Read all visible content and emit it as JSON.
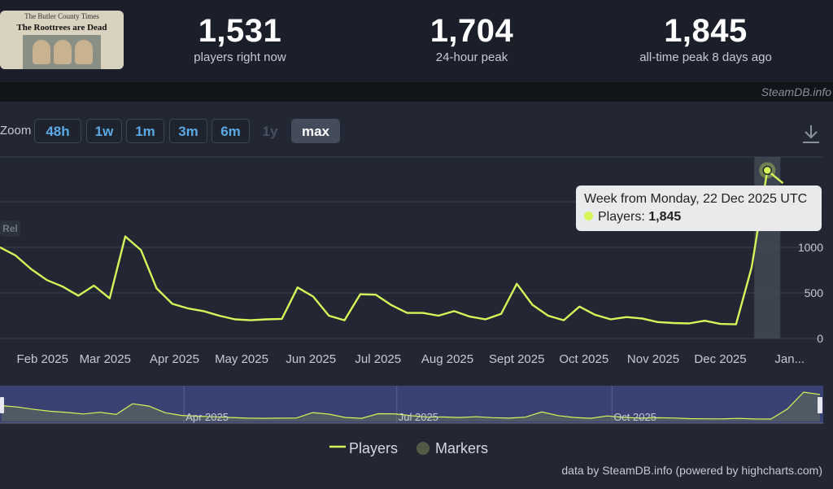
{
  "game": {
    "paper_name": "The Butler County Times",
    "headline": "The Roottrees are Dead"
  },
  "stats": [
    {
      "value": "1,531",
      "label": "players right now"
    },
    {
      "value": "1,704",
      "label": "24-hour peak"
    },
    {
      "value": "1,845",
      "label": "all-time peak 8 days ago"
    }
  ],
  "credit": "SteamDB.info",
  "zoom": {
    "label": "Zoom",
    "buttons": [
      "48h",
      "1w",
      "1m",
      "3m",
      "6m",
      "1y",
      "max"
    ],
    "active": "max",
    "disabled": [
      "1y"
    ]
  },
  "rel_badge": "Rel",
  "tooltip": {
    "title": "Week from Monday, 22 Dec 2025 UTC",
    "series_label": "Players:",
    "value": "1,845"
  },
  "legend": {
    "players": "Players",
    "markers": "Markers"
  },
  "footer": "data by SteamDB.info (powered by highcharts.com)",
  "colors": {
    "line": "#d5f558",
    "background": "#222733",
    "accent": "#5aa9e6"
  },
  "chart_data": {
    "type": "line",
    "series": [
      {
        "name": "Players"
      }
    ],
    "y_ticks": [
      "0",
      "500",
      "1000"
    ],
    "x_ticks": [
      "Feb 2025",
      "Mar 2025",
      "Apr 2025",
      "May 2025",
      "Jun 2025",
      "Jul 2025",
      "Aug 2025",
      "Sept 2025",
      "Oct 2025",
      "Nov 2025",
      "Dec 2025",
      "Jan..."
    ],
    "navigator_ticks": [
      "Apr 2025",
      "Jul 2025",
      "Oct 2025"
    ],
    "points": [
      {
        "x": "2025-01-13",
        "y": 1000
      },
      {
        "x": "2025-01-20",
        "y": 910
      },
      {
        "x": "2025-01-27",
        "y": 760
      },
      {
        "x": "2025-02-03",
        "y": 640
      },
      {
        "x": "2025-02-10",
        "y": 570
      },
      {
        "x": "2025-02-17",
        "y": 470
      },
      {
        "x": "2025-02-24",
        "y": 580
      },
      {
        "x": "2025-03-03",
        "y": 440
      },
      {
        "x": "2025-03-10",
        "y": 1120
      },
      {
        "x": "2025-03-17",
        "y": 970
      },
      {
        "x": "2025-03-24",
        "y": 550
      },
      {
        "x": "2025-03-31",
        "y": 380
      },
      {
        "x": "2025-04-07",
        "y": 330
      },
      {
        "x": "2025-04-14",
        "y": 300
      },
      {
        "x": "2025-04-21",
        "y": 250
      },
      {
        "x": "2025-04-28",
        "y": 210
      },
      {
        "x": "2025-05-05",
        "y": 200
      },
      {
        "x": "2025-05-12",
        "y": 210
      },
      {
        "x": "2025-05-19",
        "y": 215
      },
      {
        "x": "2025-05-26",
        "y": 560
      },
      {
        "x": "2025-06-02",
        "y": 460
      },
      {
        "x": "2025-06-09",
        "y": 250
      },
      {
        "x": "2025-06-16",
        "y": 200
      },
      {
        "x": "2025-06-23",
        "y": 485
      },
      {
        "x": "2025-06-30",
        "y": 480
      },
      {
        "x": "2025-07-07",
        "y": 365
      },
      {
        "x": "2025-07-14",
        "y": 280
      },
      {
        "x": "2025-07-21",
        "y": 280
      },
      {
        "x": "2025-07-28",
        "y": 250
      },
      {
        "x": "2025-08-04",
        "y": 300
      },
      {
        "x": "2025-08-11",
        "y": 240
      },
      {
        "x": "2025-08-18",
        "y": 210
      },
      {
        "x": "2025-08-25",
        "y": 270
      },
      {
        "x": "2025-09-01",
        "y": 600
      },
      {
        "x": "2025-09-08",
        "y": 370
      },
      {
        "x": "2025-09-15",
        "y": 250
      },
      {
        "x": "2025-09-22",
        "y": 200
      },
      {
        "x": "2025-09-29",
        "y": 350
      },
      {
        "x": "2025-10-06",
        "y": 260
      },
      {
        "x": "2025-10-13",
        "y": 210
      },
      {
        "x": "2025-10-20",
        "y": 235
      },
      {
        "x": "2025-10-27",
        "y": 220
      },
      {
        "x": "2025-11-03",
        "y": 180
      },
      {
        "x": "2025-11-10",
        "y": 170
      },
      {
        "x": "2025-11-17",
        "y": 165
      },
      {
        "x": "2025-11-24",
        "y": 195
      },
      {
        "x": "2025-12-01",
        "y": 160
      },
      {
        "x": "2025-12-08",
        "y": 155
      },
      {
        "x": "2025-12-15",
        "y": 780
      },
      {
        "x": "2025-12-22",
        "y": 1845
      },
      {
        "x": "2025-12-29",
        "y": 1704
      }
    ],
    "ylim": [
      0,
      1950
    ],
    "highlight": {
      "x": "2025-12-22",
      "y": 1845
    },
    "grid": true,
    "legend_position": "bottom-center"
  }
}
